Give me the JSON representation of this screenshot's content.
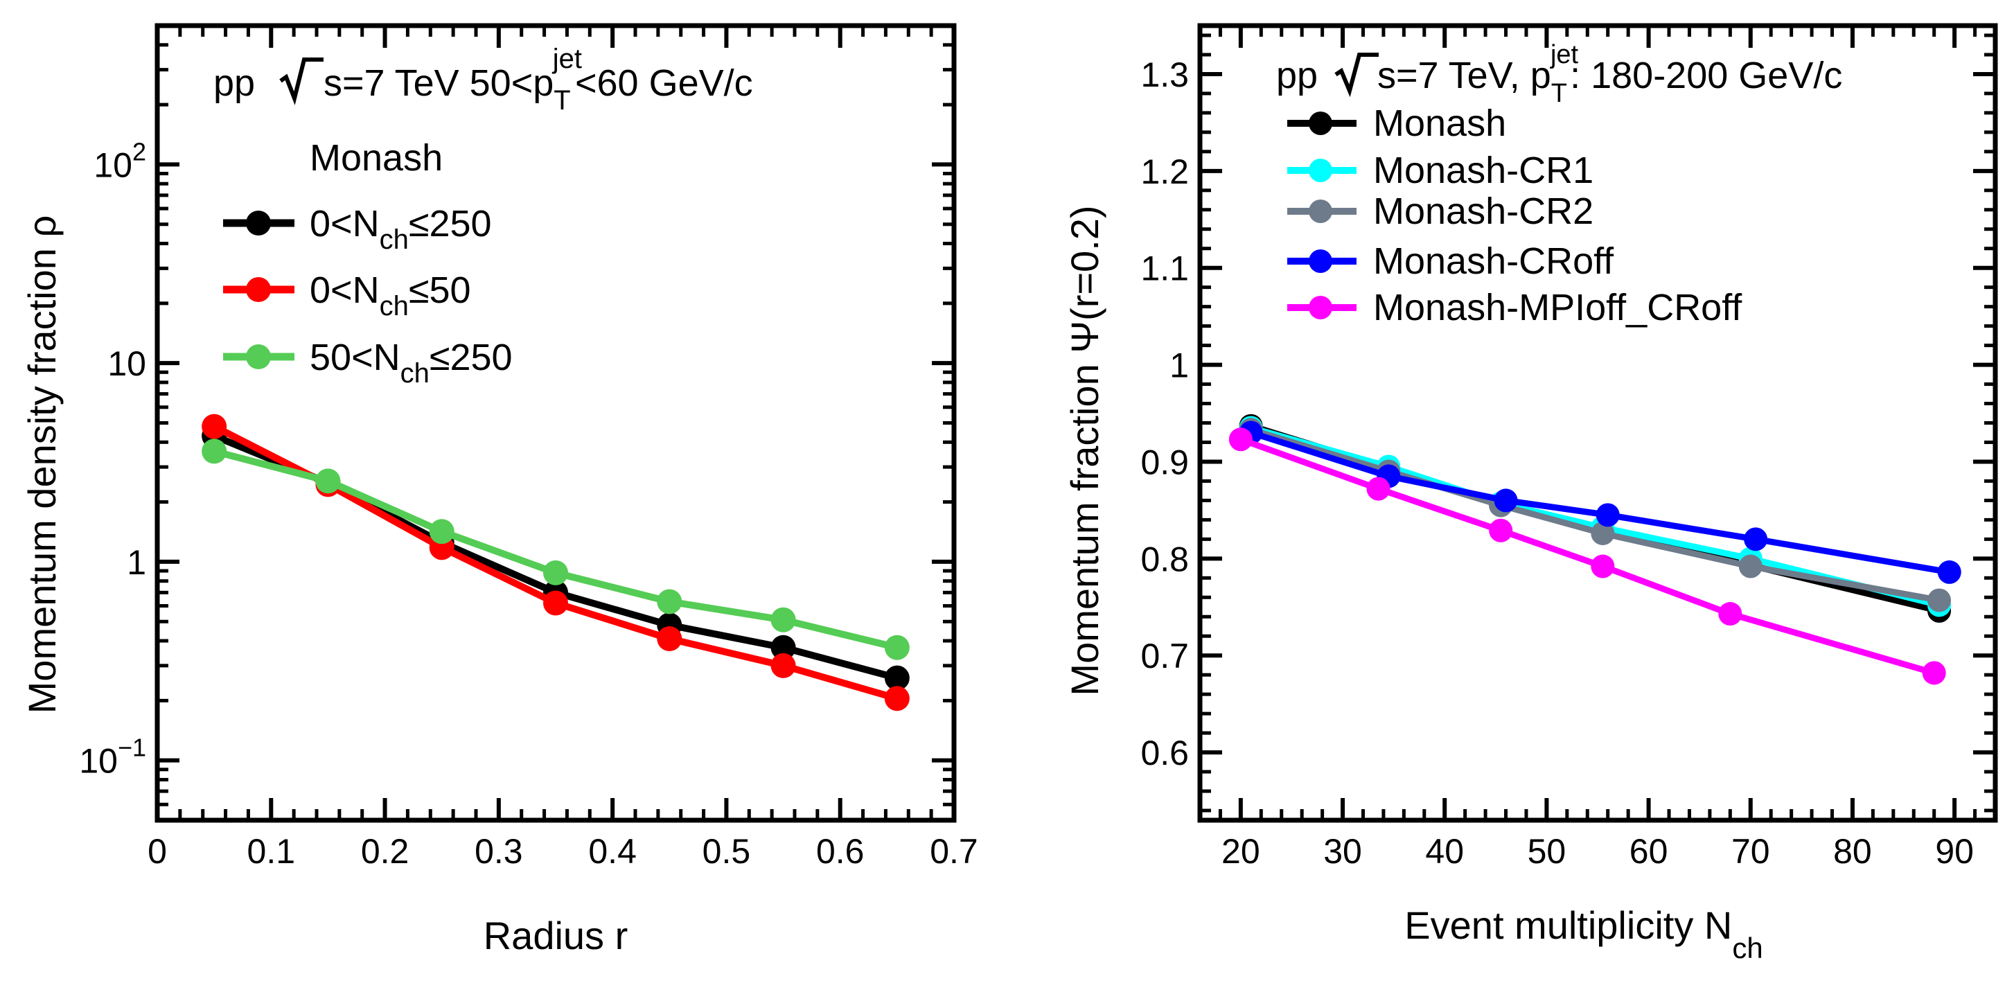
{
  "chart_data": [
    {
      "type": "line",
      "yscale": "log",
      "title": "pp √s=7 TeV 50<p_T^jet<60 GeV/c",
      "title_parts": {
        "pre": "pp ",
        "s": "s",
        "mid": "=7 TeV 50<p",
        "sub": "T",
        "sup": "jet",
        "post": "<60 GeV/c"
      },
      "legend_header": "Monash",
      "xlabel": "Radius r",
      "ylabel": "Momentum density fraction ρ",
      "xlim": [
        0,
        0.7
      ],
      "ylim": [
        0.05,
        500
      ],
      "xticks": [
        0,
        0.1,
        0.2,
        0.3,
        0.4,
        0.5,
        0.6,
        0.7
      ],
      "xtick_labels": [
        "0",
        "0.1",
        "0.2",
        "0.3",
        "0.4",
        "0.5",
        "0.6",
        "0.7"
      ],
      "yticks": [
        0.1,
        1,
        10,
        100
      ],
      "ytick_labels": [
        {
          "base": "10",
          "exp": "−1"
        },
        {
          "base": "1",
          "exp": ""
        },
        {
          "base": "10",
          "exp": ""
        },
        {
          "base": "10",
          "exp": "2"
        }
      ],
      "x": [
        0.05,
        0.15,
        0.25,
        0.35,
        0.45,
        0.55,
        0.65
      ],
      "series": [
        {
          "name": "0<N_ch≤250",
          "label_pre": "0<N",
          "label_sub": "ch",
          "label_post": "≤250",
          "color": "#000000",
          "values": [
            4.3,
            2.5,
            1.25,
            0.7,
            0.48,
            0.37,
            0.26
          ]
        },
        {
          "name": "0<N_ch≤50",
          "label_pre": "0<N",
          "label_sub": "ch",
          "label_post": "≤50",
          "color": "#ff0000",
          "values": [
            4.8,
            2.45,
            1.18,
            0.62,
            0.41,
            0.3,
            0.205
          ]
        },
        {
          "name": "50<N_ch≤250",
          "label_pre": "50<N",
          "label_sub": "ch",
          "label_post": "≤250",
          "color": "#55cc55",
          "values": [
            3.6,
            2.55,
            1.42,
            0.88,
            0.63,
            0.51,
            0.37
          ]
        }
      ]
    },
    {
      "type": "line",
      "title": "pp √s=7 TeV, p_T^jet: 180-200 GeV/c",
      "title_parts": {
        "pre": "pp ",
        "s": "s",
        "mid": "=7 TeV, p",
        "sub": "T",
        "sup": "jet",
        "post": ": 180-200 GeV/c"
      },
      "xlabel": "Event multiplicity N_ch",
      "xlabel_parts": {
        "pre": "Event multiplicity N",
        "sub": "ch"
      },
      "ylabel": "Momentum fraction Ψ(r=0.2)",
      "xlim": [
        16,
        94
      ],
      "ylim": [
        0.53,
        1.35
      ],
      "xticks": [
        20,
        30,
        40,
        50,
        60,
        70,
        80,
        90
      ],
      "xtick_labels": [
        "20",
        "30",
        "40",
        "50",
        "60",
        "70",
        "80",
        "90"
      ],
      "yticks": [
        0.6,
        0.7,
        0.8,
        0.9,
        1.0,
        1.1,
        1.2,
        1.3
      ],
      "ytick_labels": [
        "0.6",
        "0.7",
        "0.8",
        "0.9",
        "1",
        "1.1",
        "1.2",
        "1.3"
      ],
      "series": [
        {
          "name": "Monash",
          "color": "#000000",
          "x": [
            21,
            34.5,
            45.5,
            55.5,
            70,
            88.5
          ],
          "values": [
            0.937,
            0.893,
            0.855,
            0.828,
            0.793,
            0.746
          ]
        },
        {
          "name": "Monash-CR1",
          "color": "#00ffff",
          "x": [
            21,
            34.5,
            45.5,
            55.5,
            70,
            88.5
          ],
          "values": [
            0.935,
            0.895,
            0.857,
            0.832,
            0.8,
            0.752
          ]
        },
        {
          "name": "Monash-CR2",
          "color": "#6e7b8b",
          "x": [
            21,
            34.5,
            45.5,
            55.5,
            70,
            88.5
          ],
          "values": [
            0.933,
            0.89,
            0.855,
            0.826,
            0.792,
            0.757
          ]
        },
        {
          "name": "Monash-CRoff",
          "color": "#0000ff",
          "x": [
            21,
            34.5,
            46,
            56,
            70.5,
            89.5
          ],
          "values": [
            0.93,
            0.885,
            0.86,
            0.845,
            0.82,
            0.786
          ]
        },
        {
          "name": "Monash-MPIoff_CRoff",
          "color": "#ff00ff",
          "x": [
            20,
            33.5,
            45.5,
            55.5,
            68,
            88
          ],
          "values": [
            0.923,
            0.872,
            0.829,
            0.792,
            0.743,
            0.682
          ]
        }
      ]
    }
  ]
}
